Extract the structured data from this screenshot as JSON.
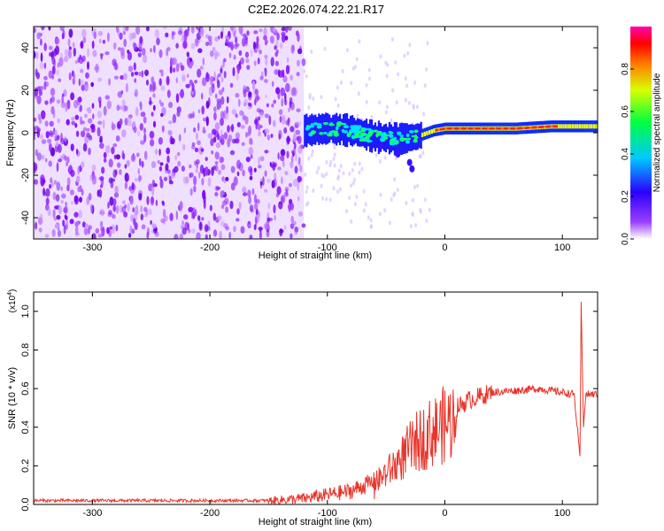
{
  "title": "C2E2.2026.074.22.21.R17",
  "chart_data": [
    {
      "type": "heatmap",
      "xlabel": "Height of straight line (km)",
      "ylabel": "Frequency (Hz)",
      "xlim": [
        -350,
        130
      ],
      "ylim": [
        -50,
        50
      ],
      "xticks": [
        -300,
        -200,
        -100,
        0,
        100
      ],
      "xtick_labels": [
        "-300",
        "-200",
        "-100",
        "0",
        "100"
      ],
      "yticks": [
        -40,
        -20,
        0,
        20,
        40
      ],
      "ytick_labels": [
        "-40",
        "-20",
        "0",
        "20",
        "40"
      ],
      "colorbar": {
        "label": "Normalized spectral amplitude",
        "range": [
          0,
          1
        ],
        "ticks": [
          0,
          0.2,
          0.4,
          0.6,
          0.8
        ],
        "tick_labels": [
          "0.0",
          "0.2",
          "0.4",
          "0.6",
          "0.8"
        ],
        "colormap": [
          "#ffffff",
          "#7f00ff",
          "#0000ff",
          "#00ffff",
          "#00ff00",
          "#ffff00",
          "#ff0000",
          "#ff00ff"
        ]
      },
      "regions": [
        {
          "name": "noise",
          "x": [
            -350,
            -120
          ],
          "freq": [
            -50,
            50
          ],
          "amplitude": 0.3
        },
        {
          "name": "transition",
          "x": [
            -120,
            -20
          ],
          "freq": [
            -10,
            10
          ],
          "amplitude": 0.5
        },
        {
          "name": "signal",
          "x": [
            -20,
            130
          ],
          "freq_center": 2,
          "amplitude": 0.95
        }
      ],
      "ridge": {
        "x": [
          -120,
          -100,
          -80,
          -60,
          -40,
          -25,
          -10,
          0,
          30,
          60,
          90,
          110,
          130
        ],
        "freq": [
          1,
          2,
          1,
          -2,
          -3,
          -2,
          1,
          2,
          2,
          2,
          3,
          3,
          3
        ]
      }
    },
    {
      "type": "line",
      "xlabel": "Height of straight line (km)",
      "ylabel": "SNR (10 * v/v)",
      "multiplier": "(x10",
      "multiplier_exp": "4",
      "multiplier_close": ")",
      "xlim": [
        -350,
        130
      ],
      "ylim": [
        0,
        1.1
      ],
      "xticks": [
        -300,
        -200,
        -100,
        0,
        100
      ],
      "xtick_labels": [
        "-300",
        "-200",
        "-100",
        "0",
        "100"
      ],
      "yticks": [
        0,
        0.2,
        0.4,
        0.6,
        0.8,
        1.0
      ],
      "ytick_labels": [
        "0.0",
        "0.2",
        "0.4",
        "0.6",
        "0.8",
        "1.0"
      ],
      "color": "#e8352b",
      "series": [
        {
          "name": "SNR",
          "x": [
            -350,
            -300,
            -250,
            -200,
            -150,
            -120,
            -100,
            -80,
            -60,
            -50,
            -40,
            -30,
            -20,
            -10,
            0,
            10,
            20,
            40,
            60,
            80,
            100,
            110,
            115,
            116,
            118,
            120,
            130
          ],
          "y": [
            0.02,
            0.02,
            0.02,
            0.02,
            0.02,
            0.03,
            0.05,
            0.07,
            0.12,
            0.18,
            0.24,
            0.32,
            0.38,
            0.42,
            0.46,
            0.5,
            0.54,
            0.58,
            0.59,
            0.6,
            0.58,
            0.57,
            0.25,
            1.05,
            0.4,
            0.57,
            0.57
          ]
        }
      ]
    }
  ]
}
